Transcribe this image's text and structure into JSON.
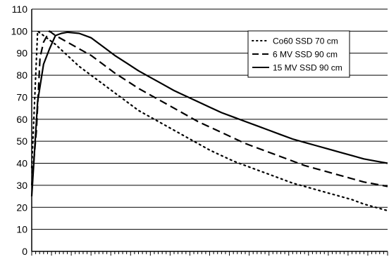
{
  "chart_data": {
    "type": "line",
    "title": "",
    "xlabel": "",
    "ylabel": "",
    "ylim": [
      0,
      110
    ],
    "xlim": [
      0,
      30
    ],
    "yticks": [
      0,
      10,
      20,
      30,
      40,
      50,
      60,
      70,
      80,
      90,
      100,
      110
    ],
    "grid": "horizontal",
    "legend_position": "top-right",
    "series": [
      {
        "name": "Co60 SSD 70 cm",
        "style": "dotted",
        "x": [
          0,
          0.3,
          0.5,
          1.0,
          2,
          3,
          4,
          5,
          6,
          7,
          8,
          9,
          10,
          11,
          12,
          13,
          14,
          15,
          16,
          17,
          18,
          19,
          20,
          21,
          22,
          23,
          24,
          25,
          26,
          27,
          28,
          29,
          30
        ],
        "values": [
          38,
          75,
          100,
          98,
          94,
          89,
          84,
          80,
          76,
          72,
          68,
          64,
          61,
          58,
          55,
          52,
          49,
          46,
          43.5,
          41,
          39,
          37,
          35,
          33,
          31,
          29.5,
          28,
          26.5,
          25,
          23.5,
          21.5,
          20,
          18.5
        ]
      },
      {
        "name": "6 MV SSD 90 cm",
        "style": "dashed",
        "x": [
          0,
          0.4,
          0.7,
          1.0,
          1.5,
          2,
          3,
          4,
          5,
          6,
          7,
          8,
          9,
          10,
          11,
          12,
          13,
          14,
          15,
          16,
          17,
          18,
          19,
          20,
          21,
          22,
          23,
          24,
          25,
          26,
          27,
          28,
          29,
          30
        ],
        "values": [
          30,
          55,
          88,
          95,
          100,
          98,
          95,
          92,
          89,
          85,
          81,
          77.5,
          74,
          71,
          68,
          65,
          62,
          59,
          56.5,
          54,
          51.5,
          49,
          47,
          45,
          43,
          41,
          39,
          37.5,
          36,
          34.5,
          33,
          31.5,
          30.5,
          29.5
        ]
      },
      {
        "name": "15 MV SSD 90 cm",
        "style": "solid",
        "x": [
          0,
          0.5,
          1.0,
          1.5,
          2,
          2.5,
          3,
          4,
          5,
          6,
          7,
          8,
          9,
          10,
          11,
          12,
          13,
          14,
          15,
          16,
          17,
          18,
          19,
          20,
          21,
          22,
          23,
          24,
          25,
          26,
          27,
          28,
          29,
          30
        ],
        "values": [
          25,
          68,
          85,
          92,
          98,
          99,
          99.5,
          99,
          97,
          93,
          89,
          85.5,
          82,
          79,
          76,
          73,
          70.5,
          68,
          65.5,
          63,
          61,
          59,
          57,
          55,
          53,
          51,
          49.5,
          48,
          46.5,
          45,
          43.5,
          42,
          41,
          40
        ]
      }
    ]
  }
}
